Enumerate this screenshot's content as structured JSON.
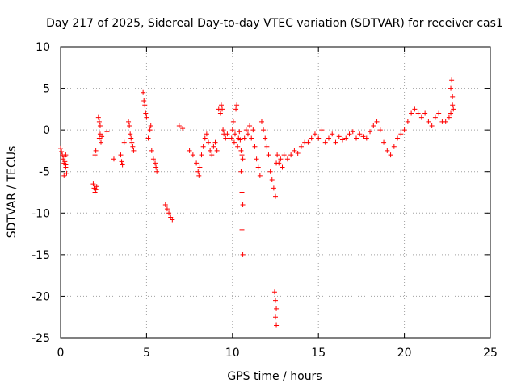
{
  "chart_data": {
    "type": "scatter",
    "title": "Day 217 of 2025, Sidereal Day-to-day VTEC variation (SDTVAR) for receiver cas1",
    "xlabel": "GPS time / hours",
    "ylabel": "SDTVAR / TECUs",
    "xlim": [
      0,
      25
    ],
    "ylim": [
      -25,
      10
    ],
    "xticks": [
      0,
      5,
      10,
      15,
      20,
      25
    ],
    "yticks": [
      -25,
      -20,
      -15,
      -10,
      -5,
      0,
      5,
      10
    ],
    "xtick_labels": [
      "0",
      "5",
      "10",
      "15",
      "20",
      "25"
    ],
    "ytick_labels": [
      "-25",
      "-20",
      "-15",
      "-10",
      "-5",
      "0",
      "5",
      "10"
    ],
    "grid": true,
    "marker": "+",
    "color": "#ff0000",
    "series": [
      {
        "name": "cas1",
        "x": [
          0.0,
          0.05,
          0.1,
          0.15,
          0.2,
          0.25,
          0.3,
          0.35,
          0.2,
          0.25,
          0.3,
          0.3,
          1.9,
          1.95,
          2.0,
          2.05,
          2.1,
          2.0,
          2.05,
          2.2,
          2.25,
          2.3,
          2.3,
          2.35,
          2.25,
          2.4,
          2.7,
          3.1,
          3.5,
          3.55,
          3.6,
          3.7,
          3.95,
          4.0,
          4.05,
          4.1,
          4.15,
          4.2,
          4.25,
          4.8,
          4.85,
          4.9,
          4.95,
          5.0,
          5.1,
          5.2,
          5.25,
          5.3,
          5.4,
          5.5,
          5.55,
          5.6,
          6.1,
          6.2,
          6.3,
          6.4,
          6.5,
          6.9,
          7.1,
          7.5,
          7.7,
          7.9,
          8.0,
          8.05,
          8.1,
          8.2,
          8.3,
          8.4,
          8.5,
          8.6,
          8.7,
          8.8,
          8.9,
          9.0,
          9.1,
          9.2,
          9.3,
          9.35,
          9.4,
          9.45,
          9.5,
          9.6,
          9.7,
          9.8,
          9.95,
          10.0,
          10.05,
          10.1,
          10.15,
          10.2,
          10.25,
          10.3,
          10.35,
          10.4,
          10.45,
          10.5,
          10.55,
          10.6,
          10.5,
          10.55,
          10.6,
          10.55,
          10.6,
          10.7,
          10.8,
          10.9,
          11.0,
          11.1,
          11.2,
          11.3,
          11.4,
          11.5,
          11.6,
          11.7,
          11.8,
          11.9,
          12.0,
          12.1,
          12.2,
          12.3,
          12.4,
          12.5,
          12.55,
          12.6,
          12.45,
          12.5,
          12.55,
          12.5,
          12.55,
          12.7,
          12.8,
          12.9,
          13.0,
          13.2,
          13.4,
          13.6,
          13.8,
          14.0,
          14.2,
          14.4,
          14.6,
          14.8,
          15.0,
          15.2,
          15.4,
          15.6,
          15.8,
          16.0,
          16.2,
          16.4,
          16.6,
          16.8,
          17.0,
          17.2,
          17.4,
          17.6,
          17.8,
          18.0,
          18.2,
          18.4,
          18.6,
          18.8,
          19.0,
          19.2,
          19.4,
          19.6,
          19.8,
          20.0,
          20.2,
          20.4,
          20.6,
          20.8,
          21.0,
          21.2,
          21.4,
          21.6,
          21.8,
          22.0,
          22.2,
          22.4,
          22.6,
          22.7,
          22.8,
          22.85,
          22.7,
          22.75,
          22.8
        ],
        "y": [
          -2.2,
          -2.6,
          -3.0,
          -3.5,
          -4.0,
          -3.2,
          -4.5,
          -5.2,
          -5.5,
          -3.8,
          -3.0,
          -4.2,
          -6.5,
          -7.0,
          -7.5,
          -7.2,
          -6.8,
          -3.0,
          -2.5,
          1.5,
          1.0,
          -0.5,
          0.5,
          -1.5,
          -1.0,
          -0.8,
          -0.2,
          -3.5,
          -3.0,
          -3.8,
          -4.2,
          -1.5,
          1.0,
          0.5,
          -0.5,
          -1.0,
          -1.5,
          -2.0,
          -2.5,
          4.5,
          3.5,
          3.0,
          2.0,
          1.5,
          -1.0,
          0.0,
          0.5,
          -2.5,
          -3.5,
          -4.0,
          -4.5,
          -5.0,
          -9.0,
          -9.5,
          -10.0,
          -10.5,
          -10.8,
          0.5,
          0.2,
          -2.5,
          -3.0,
          -4.0,
          -5.0,
          -5.5,
          -4.5,
          -3.0,
          -2.0,
          -1.0,
          -0.5,
          -1.5,
          -2.5,
          -3.0,
          -2.0,
          -1.5,
          -2.5,
          2.5,
          2.0,
          3.0,
          2.5,
          0.0,
          -0.5,
          -1.0,
          -0.5,
          -1.0,
          -1.0,
          0.0,
          1.0,
          -1.5,
          -0.5,
          2.5,
          3.0,
          -2.0,
          -1.0,
          -0.2,
          -1.2,
          -2.5,
          -3.0,
          -3.5,
          -5.0,
          -7.5,
          -9.0,
          -12.0,
          -15.0,
          -1.0,
          0.0,
          -0.5,
          0.5,
          -1.0,
          0.0,
          -2.0,
          -3.5,
          -4.5,
          -5.5,
          1.0,
          0.0,
          -1.0,
          -2.0,
          -3.0,
          -5.0,
          -6.0,
          -7.0,
          -8.0,
          -4.0,
          -3.0,
          -19.5,
          -20.5,
          -21.5,
          -22.5,
          -23.5,
          -4.0,
          -3.5,
          -4.5,
          -3.0,
          -3.5,
          -3.0,
          -2.5,
          -2.8,
          -2.0,
          -1.5,
          -1.5,
          -1.0,
          -0.5,
          -1.0,
          0.0,
          -1.5,
          -1.0,
          -0.5,
          -1.5,
          -0.8,
          -1.2,
          -1.0,
          -0.5,
          -0.2,
          -1.0,
          -0.5,
          -0.8,
          -1.0,
          -0.2,
          0.5,
          1.0,
          0.0,
          -1.5,
          -2.5,
          -3.0,
          -2.0,
          -1.0,
          -0.5,
          0.0,
          1.0,
          2.0,
          2.5,
          2.0,
          1.5,
          2.0,
          1.0,
          0.5,
          1.5,
          2.0,
          1.0,
          1.0,
          1.5,
          2.0,
          3.0,
          2.5,
          5.0,
          6.0,
          4.0
        ]
      }
    ]
  }
}
